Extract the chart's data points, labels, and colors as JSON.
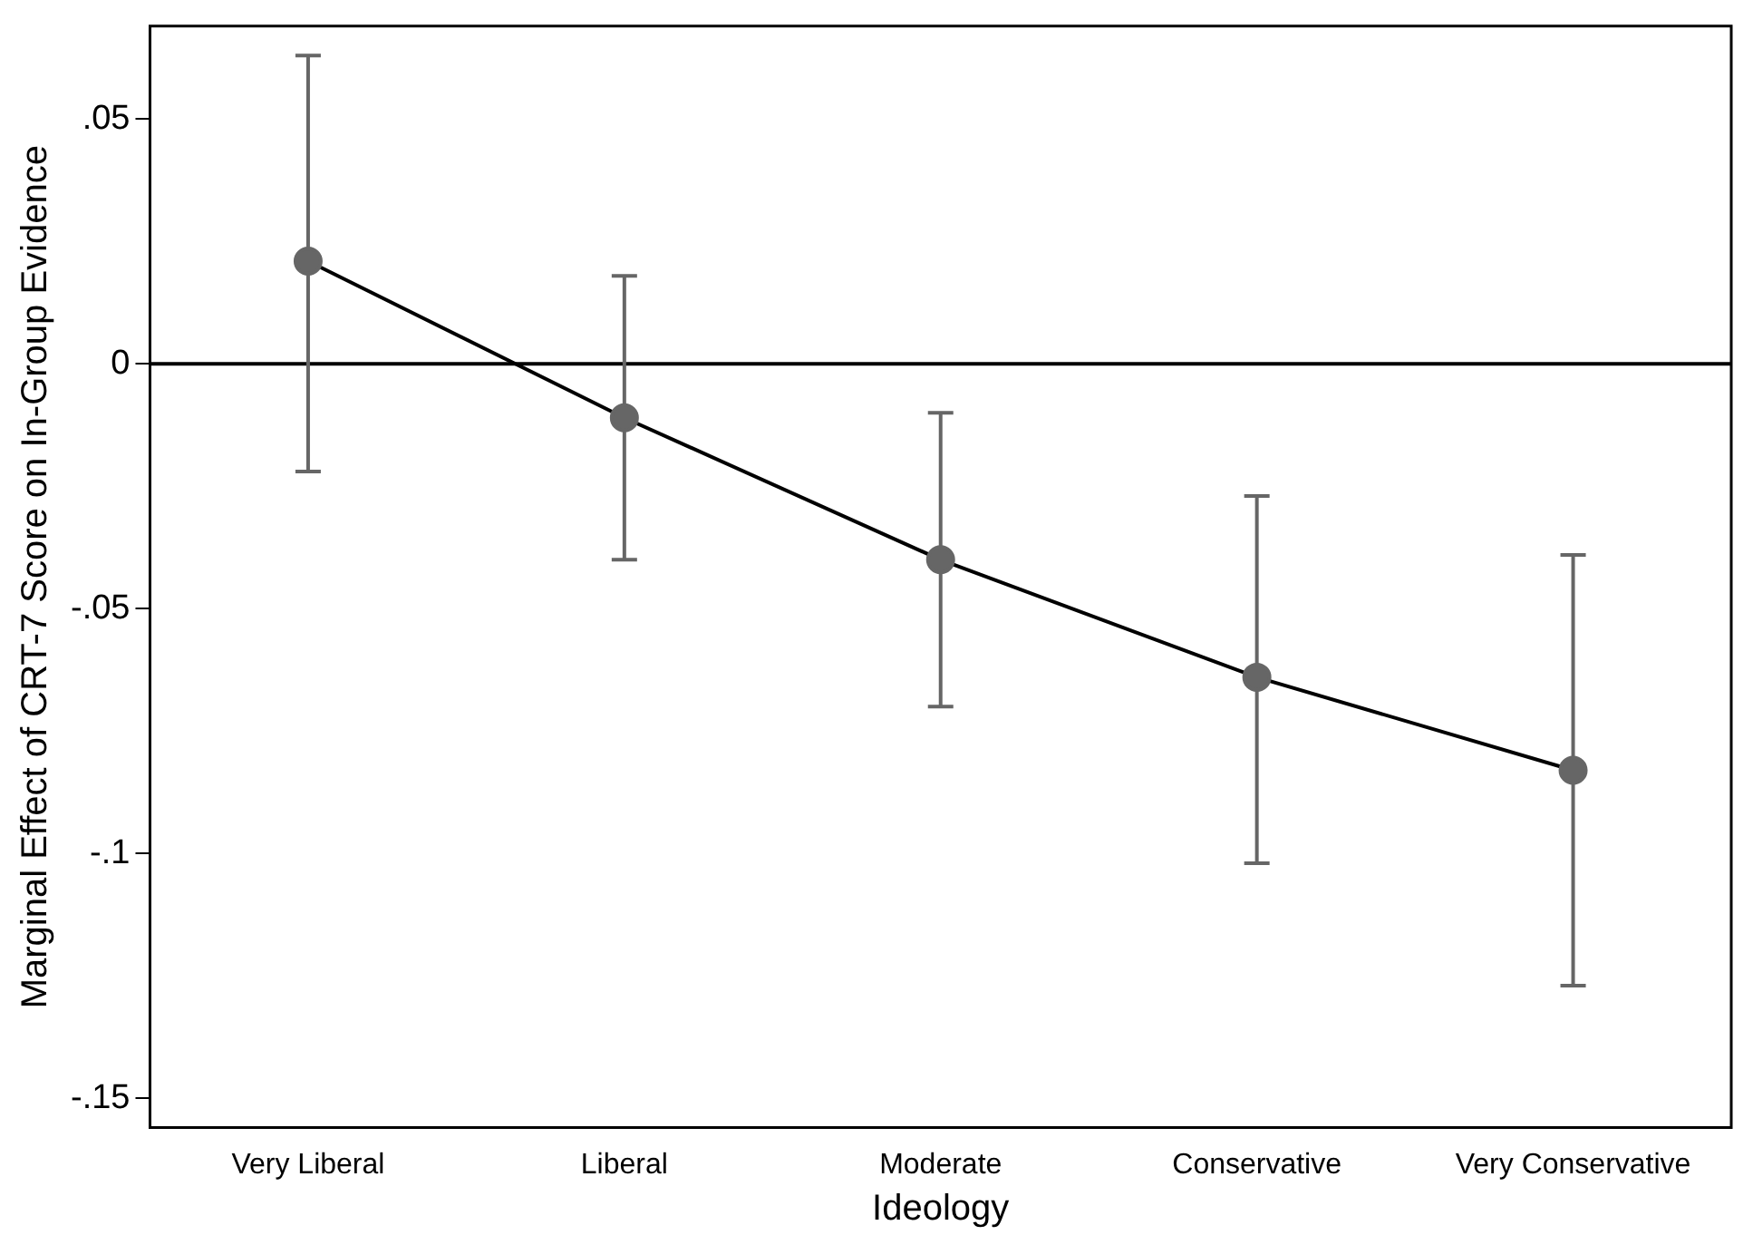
{
  "chart_data": {
    "type": "line",
    "xlabel": "Ideology",
    "ylabel": "Marginal Effect of CRT-7 Score on In-Group Evidence",
    "categories": [
      "Very Liberal",
      "Liberal",
      "Moderate",
      "Conservative",
      "Very Conservative"
    ],
    "series": [
      {
        "color": "#000000",
        "values": [
          0.021,
          -0.011,
          -0.04,
          -0.064,
          -0.083
        ],
        "errors": [
          [
            -0.022,
            0.063
          ],
          [
            -0.04,
            0.018
          ],
          [
            -0.07,
            -0.01
          ],
          [
            -0.102,
            -0.027
          ],
          [
            -0.127,
            -0.039
          ]
        ]
      }
    ],
    "marker": "circle",
    "line_style": "solid",
    "grid": false,
    "legend": false,
    "ylim": [
      -0.156,
      0.069
    ],
    "yticks": [
      {
        "value": 0.05,
        "label": ".05"
      },
      {
        "value": 0,
        "label": "0"
      },
      {
        "value": -0.05,
        "label": "-.05"
      },
      {
        "value": -0.1,
        "label": "-.1"
      },
      {
        "value": -0.15,
        "label": "-.15"
      }
    ],
    "ref_lines": [
      {
        "axis": "y",
        "value": 0,
        "color": "#000000"
      }
    ]
  }
}
